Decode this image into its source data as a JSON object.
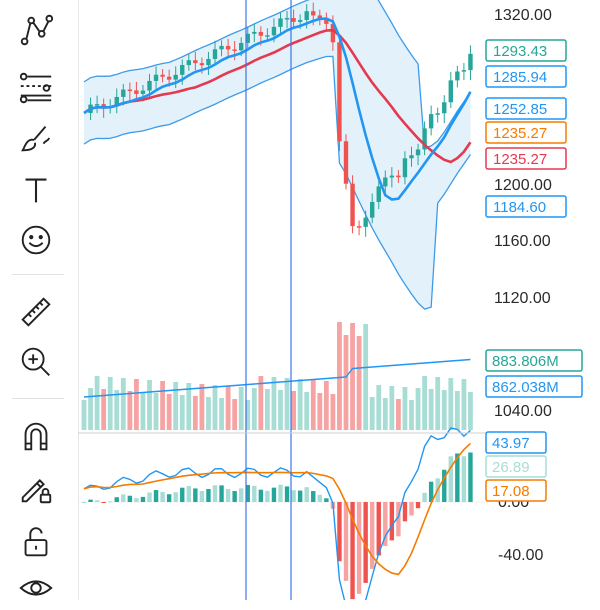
{
  "toolbar": {
    "icons": [
      "trend-line-icon",
      "fib-retracement-icon",
      "brush-icon",
      "text-icon",
      "smiley-icon",
      "ruler-icon",
      "zoom-in-icon",
      "magnet-icon",
      "pencil-lock-icon",
      "unlock-icon",
      "eye-icon"
    ]
  },
  "colors": {
    "up": "#26a69a",
    "down": "#ef5350",
    "ma_blue": "#2196f3",
    "ma_red": "#e53950",
    "band_fill": "#e3f1fb",
    "band_line": "#3d9be9",
    "osc_orange": "#f57c00",
    "vline": "#3d74e6"
  },
  "chart_data": [
    {
      "type": "candlestick",
      "y_ticks": [
        "1320.00",
        "1200.00",
        "1160.00",
        "1120.00",
        "1040.00"
      ],
      "y_tick_values": [
        1320,
        1200,
        1160,
        1120,
        1040
      ],
      "price_tags": [
        {
          "text": "1293.43",
          "color": "#26a69a",
          "style": "outline"
        },
        {
          "text": "1285.94",
          "color": "#2196f3",
          "style": "outline"
        },
        {
          "text": "1252.85",
          "color": "#2196f3",
          "style": "outline"
        },
        {
          "text": "1235.27",
          "color": "#f57c00",
          "style": "outline"
        },
        {
          "text": "1235.27",
          "color": "#e53950",
          "style": "outline"
        },
        {
          "text": "1184.60",
          "color": "#2196f3",
          "style": "outline"
        }
      ],
      "ylim": [
        1010,
        1335
      ]
    },
    {
      "type": "bar",
      "label": "volume",
      "tags": [
        {
          "text": "883.806M",
          "color": "#26a69a"
        },
        {
          "text": "862.038M",
          "color": "#2196f3"
        }
      ]
    },
    {
      "type": "oscillator",
      "y_ticks": [
        "0.00",
        "-40.00"
      ],
      "y_tick_values": [
        0,
        -40
      ],
      "tags": [
        {
          "text": "43.97",
          "color": "#2196f3"
        },
        {
          "text": "26.89",
          "color": "#a8ddd5"
        },
        {
          "text": "17.08",
          "color": "#f57c00"
        }
      ]
    }
  ]
}
